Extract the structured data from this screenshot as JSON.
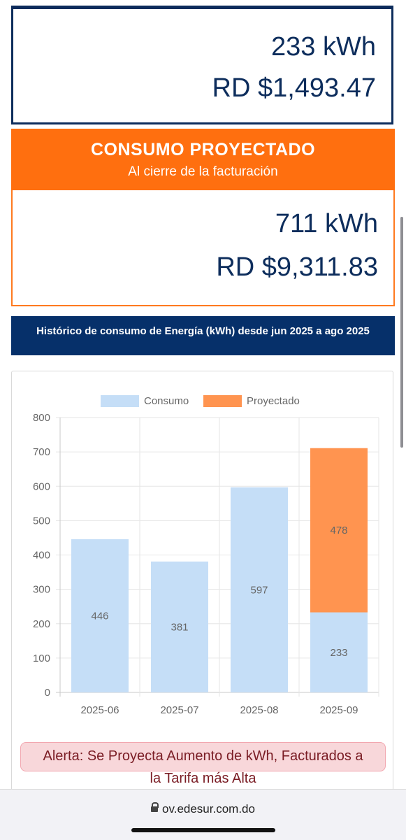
{
  "current": {
    "kwh": "233 kWh",
    "amount": "RD $1,493.47"
  },
  "projected": {
    "title": "CONSUMO PROYECTADO",
    "subtitle": "Al cierre de la facturación",
    "kwh": "711 kWh",
    "amount": "RD $9,311.83"
  },
  "history": {
    "header": "Histórico de consumo de Energía (kWh) desde jun 2025 a ago 2025"
  },
  "colors": {
    "navy": "#0d2d5c",
    "orange": "#ff6f0f",
    "consumo_bar": "#c5def7",
    "proyectado_bar": "#ff9450"
  },
  "chart_data": {
    "type": "bar",
    "stacked": true,
    "categories": [
      "2025-06",
      "2025-07",
      "2025-08",
      "2025-09"
    ],
    "series": [
      {
        "name": "Consumo",
        "values": [
          446,
          381,
          597,
          233
        ]
      },
      {
        "name": "Proyectado",
        "values": [
          0,
          0,
          0,
          478
        ]
      }
    ],
    "data_labels": {
      "Consumo": [
        "446",
        "381",
        "597",
        "233"
      ],
      "Proyectado": [
        "",
        "",
        "",
        "478"
      ]
    },
    "yticks": [
      "0",
      "100",
      "200",
      "300",
      "400",
      "500",
      "600",
      "700",
      "800"
    ],
    "ylim": [
      0,
      800
    ],
    "legend_position": "top",
    "grid": true
  },
  "alert": {
    "line1": "Alerta: Se Proyecta Aumento de kWh, Facturados a",
    "line2": "la Tarifa más Alta"
  },
  "browser": {
    "url": "ov.edesur.com.do"
  }
}
